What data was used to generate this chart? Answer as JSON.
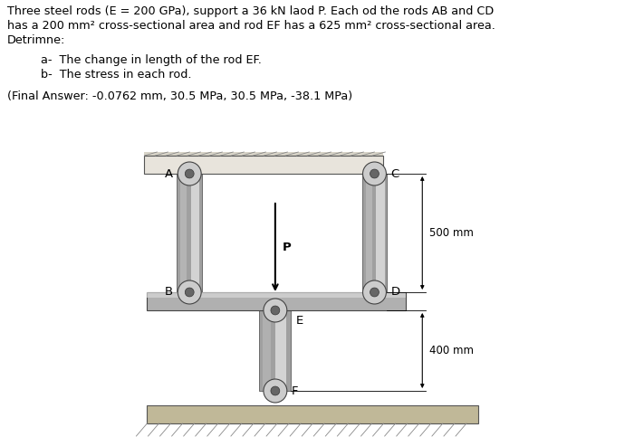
{
  "title_lines": [
    "Three steel rods (E = 200 GPa), support a 36 kN laod P. Each od the rods AB and CD",
    "has a 200 mm² cross-sectional area and rod EF has a 625 mm² cross-sectional area.",
    "Detrimne:"
  ],
  "bullet_a": "a-  The change in length of the rod EF.",
  "bullet_b": "b-  The stress in each rod.",
  "final_answer": "(Final Answer: -0.0762 mm, 30.5 MPa, 30.5 MPa, -38.1 MPa)",
  "label_A": "A",
  "label_B": "B",
  "label_C": "C",
  "label_D": "D",
  "label_E": "E",
  "label_F": "F",
  "label_P": "P",
  "dim_500": "500 mm",
  "dim_400": "400 mm",
  "bg_color": "#ffffff",
  "text_color": "#000000",
  "rod_fill": "#c8c8c8",
  "rod_edge": "#555555",
  "wall_fill": "#d4cfc0",
  "ground_fill": "#c0b898",
  "hatch_color": "#888888",
  "pin_fill": "#d0d0d0",
  "pin_edge": "#444444"
}
